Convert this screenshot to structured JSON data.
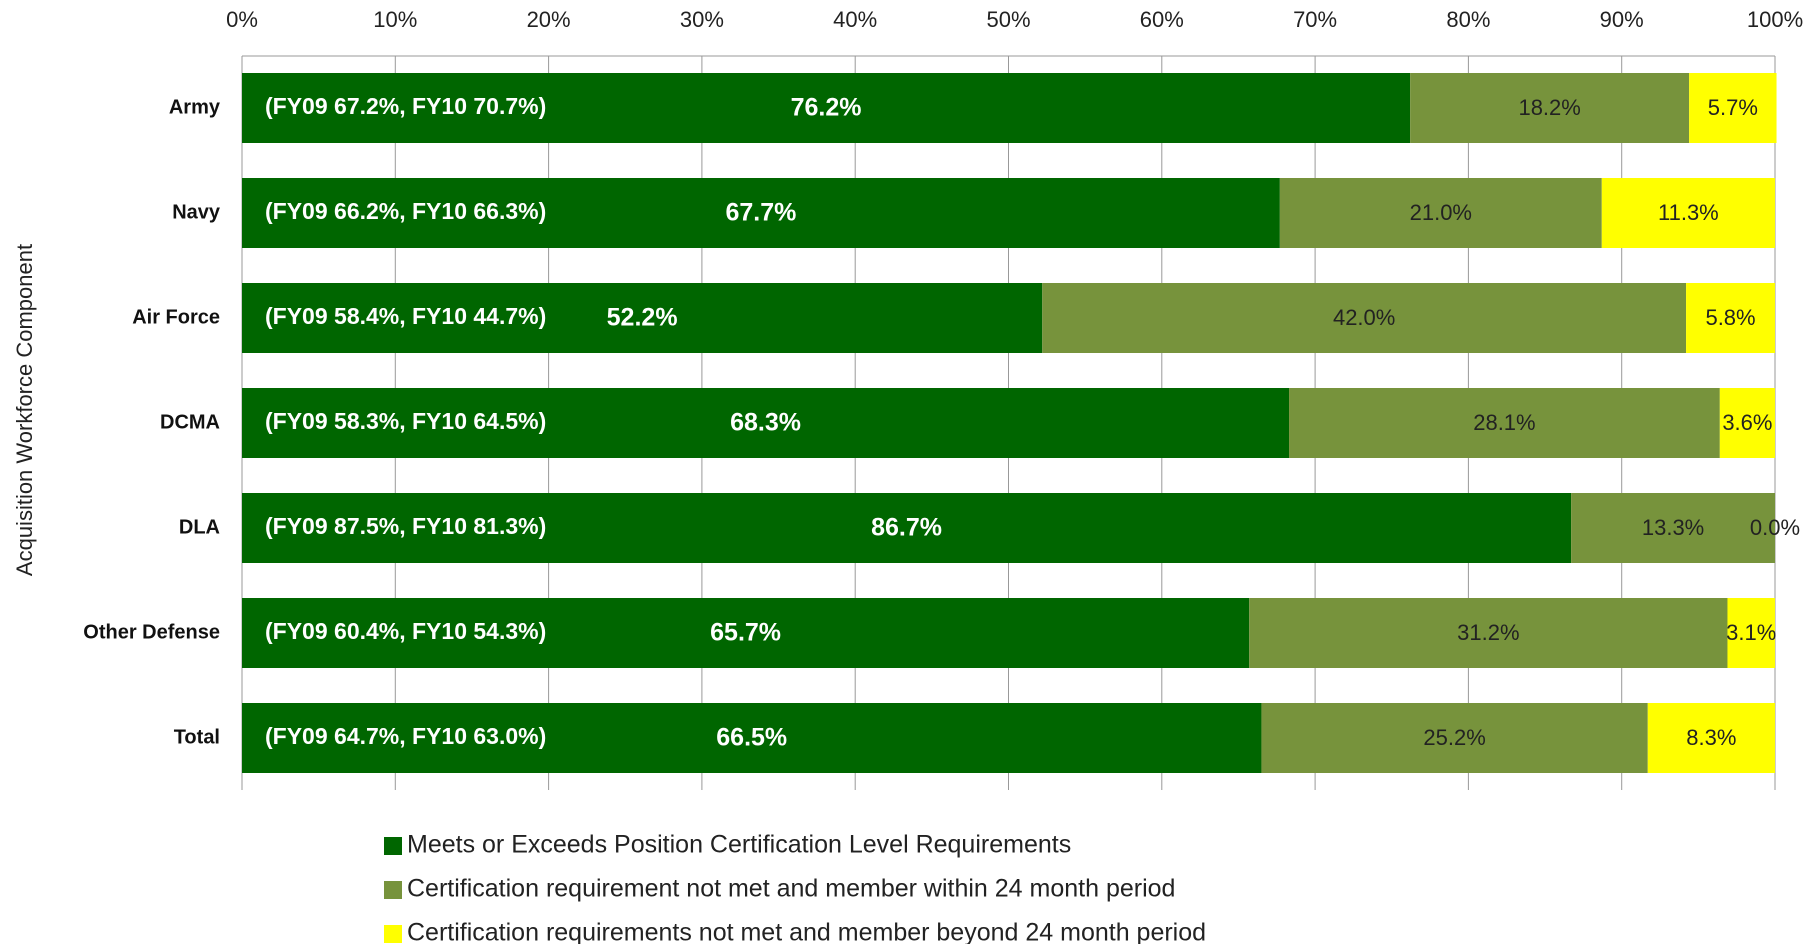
{
  "chart_data": {
    "type": "stacked_bar_horizontal",
    "y_axis_label": "Acquisition Workforce Component",
    "categories": [
      "Army",
      "Navy",
      "Air Force",
      "DCMA",
      "DLA",
      "Other Defense",
      "Total"
    ],
    "annotations": [
      "(FY09 67.2%, FY10 70.7%)",
      "(FY09 66.2%, FY10 66.3%)",
      "(FY09 58.4%, FY10 44.7%)",
      "(FY09 58.3%, FY10 64.5%)",
      "(FY09 87.5%, FY10 81.3%)",
      "(FY09 60.4%, FY10 54.3%)",
      "(FY09 64.7%, FY10 63.0%)"
    ],
    "series": [
      {
        "name": "Meets or Exceeds Position Certification Level Requirements",
        "color": "#006600",
        "values": [
          76.2,
          67.7,
          52.2,
          68.3,
          86.7,
          65.7,
          66.5
        ],
        "value_labels": [
          "76.2%",
          "67.7%",
          "52.2%",
          "68.3%",
          "86.7%",
          "65.7%",
          "66.5%"
        ]
      },
      {
        "name": "Certification requirement not met and member within 24 month period",
        "color": "#77933c",
        "values": [
          18.2,
          21.0,
          42.0,
          28.1,
          13.3,
          31.2,
          25.2
        ],
        "value_labels": [
          "18.2%",
          "21.0%",
          "42.0%",
          "28.1%",
          "13.3%",
          "31.2%",
          "25.2%"
        ]
      },
      {
        "name": "Certification requirements not met and member beyond 24 month period",
        "color": "#ffff00",
        "values": [
          5.7,
          11.3,
          5.8,
          3.6,
          0.0,
          3.1,
          8.3
        ],
        "value_labels": [
          "5.7%",
          "11.3%",
          "5.8%",
          "3.6%",
          "0.0%",
          "3.1%",
          "8.3%"
        ]
      }
    ],
    "xlim": [
      0,
      100
    ],
    "xticks": [
      {
        "value": 0,
        "label": "0%"
      },
      {
        "value": 10,
        "label": "10%"
      },
      {
        "value": 20,
        "label": "20%"
      },
      {
        "value": 30,
        "label": "30%"
      },
      {
        "value": 40,
        "label": "40%"
      },
      {
        "value": 50,
        "label": "50%"
      },
      {
        "value": 60,
        "label": "60%"
      },
      {
        "value": 70,
        "label": "70%"
      },
      {
        "value": 80,
        "label": "80%"
      },
      {
        "value": 90,
        "label": "90%"
      },
      {
        "value": 100,
        "label": "100%"
      }
    ],
    "grid": true
  }
}
